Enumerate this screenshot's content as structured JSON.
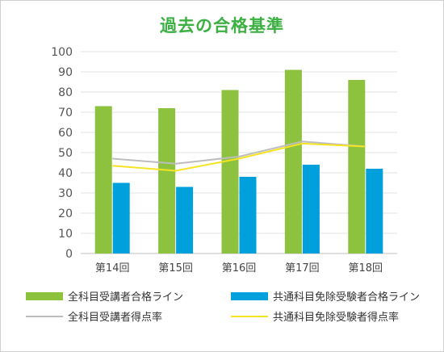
{
  "chart_data": {
    "type": "bar",
    "title": "過去の合格基準",
    "categories": [
      "第14回",
      "第15回",
      "第16回",
      "第17回",
      "第18回"
    ],
    "ylim": [
      0,
      100
    ],
    "yticks": [
      0,
      10,
      20,
      30,
      40,
      50,
      60,
      70,
      80,
      90,
      100
    ],
    "grid": true,
    "legend_position": "bottom",
    "bar_series": [
      {
        "name": "全科目受講者合格ライン",
        "color": "#8dc23f",
        "values": [
          73,
          72,
          81,
          91,
          86
        ]
      },
      {
        "name": "共通科目免除受験者合格ライン",
        "color": "#00a0dc",
        "values": [
          35,
          33,
          38,
          44,
          42
        ]
      }
    ],
    "line_series": [
      {
        "name": "全科目受講者得点率",
        "color": "#bdbdbd",
        "values": [
          47,
          44.5,
          48,
          55.5,
          53
        ]
      },
      {
        "name": "共通科目免除受験者得点率",
        "color": "#f5e324",
        "values": [
          43.5,
          41,
          47,
          54.5,
          53
        ]
      }
    ]
  }
}
